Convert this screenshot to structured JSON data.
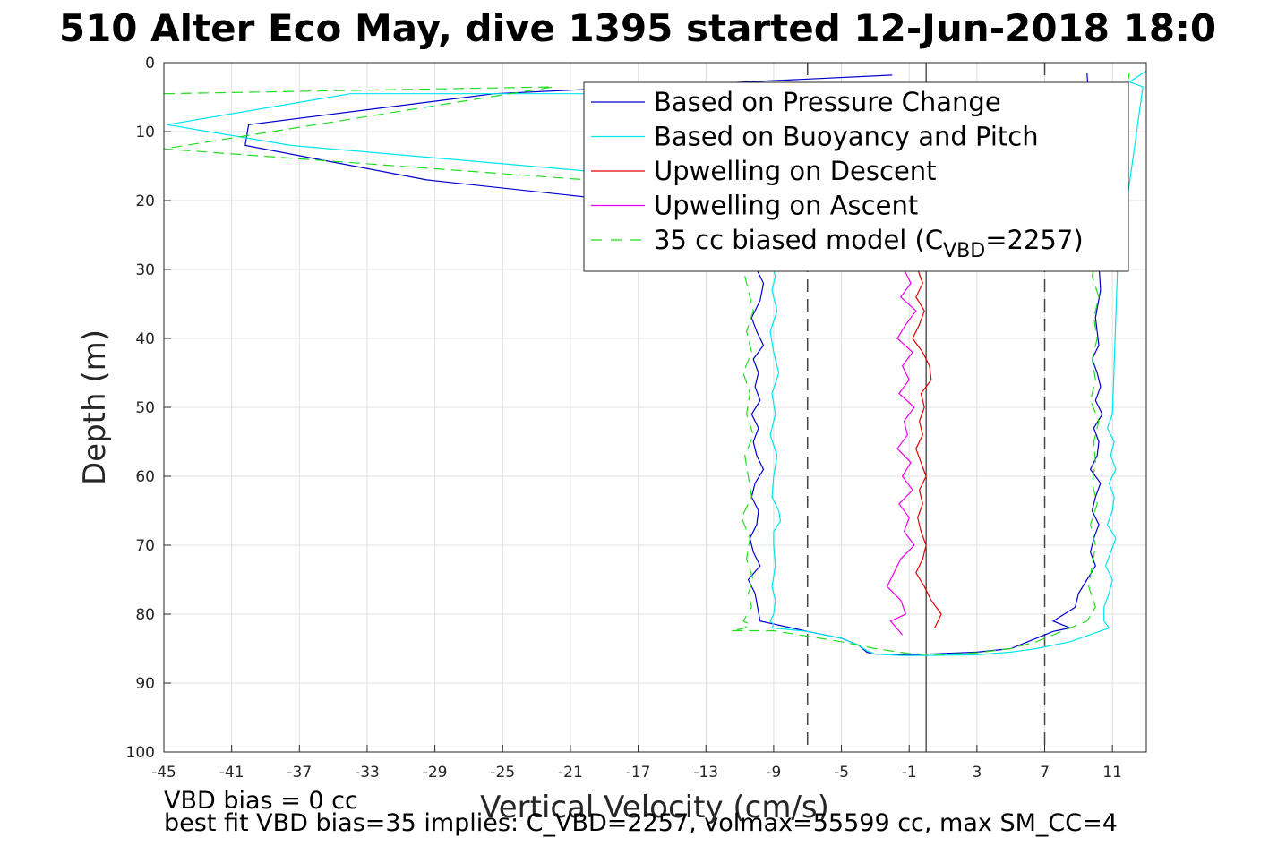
{
  "chart_data": {
    "type": "line",
    "title": "510 Alter Eco May, dive 1395 started 12-Jun-2018 18:0",
    "xlabel": "Vertical Velocity (cm/s)",
    "ylabel": "Depth (m)",
    "xlim": [
      -45,
      13
    ],
    "ylim": [
      0,
      100
    ],
    "y_reversed": true,
    "grid": true,
    "legend_position": "top-right",
    "xticks": [
      -45,
      -41,
      -37,
      -33,
      -29,
      -25,
      -21,
      -17,
      -13,
      -9,
      -5,
      -1,
      3,
      7,
      11
    ],
    "yticks": [
      0,
      10,
      20,
      30,
      40,
      50,
      60,
      70,
      80,
      90,
      100
    ],
    "reference_lines": {
      "solid_x": 0,
      "dashed_x": [
        -7,
        7
      ]
    },
    "legend": [
      {
        "label": "Based on Pressure Change",
        "color": "#0000cc",
        "style": "solid"
      },
      {
        "label": "Based on Buoyancy and Pitch",
        "color": "#00e5ee",
        "style": "solid"
      },
      {
        "label": "Upwelling on Descent",
        "color": "#e00000",
        "style": "solid"
      },
      {
        "label": "Upwelling on Ascent",
        "color": "#ee00ee",
        "style": "solid"
      },
      {
        "label": "35 cc biased model (C",
        "sub": "VBD",
        "suffix": "=2257)",
        "color": "#22dd22",
        "style": "dashed"
      }
    ],
    "series": [
      {
        "name": "Based on Pressure Change",
        "color": "#0000cc",
        "style": "solid",
        "x": [
          -2.0,
          -25.5,
          -40.0,
          -40.2,
          -29.5,
          -20.0,
          -10.7,
          -10.0,
          -9.6,
          -9.8,
          -10.3,
          -10.0,
          -9.6,
          -10.2,
          -9.9,
          -10.1,
          -9.8,
          -10.3,
          -9.9,
          -10.2,
          -10.0,
          -9.6,
          -10.1,
          -10.3,
          -9.9,
          -10.0,
          -10.4,
          -10.2,
          -9.8,
          -10.5,
          -10.1,
          -9.8,
          -7.0,
          -5.0,
          -4.0,
          -3.5,
          -3.0,
          -1.5,
          0.0,
          3.0,
          5.0,
          6.0,
          7.5,
          8.5,
          7.5,
          8.8,
          9.0,
          9.5,
          10.0,
          9.7,
          9.9,
          10.2,
          9.8,
          10.0,
          10.3,
          9.7,
          10.1,
          10.2,
          9.9,
          10.4,
          10.0,
          10.3,
          10.1,
          9.8,
          10.2,
          10.0,
          10.3,
          9.5
        ],
        "y": [
          1.8,
          4.5,
          9.0,
          12.0,
          17.0,
          19.5,
          24.0,
          30.0,
          32.0,
          34.5,
          37.0,
          39.0,
          41.0,
          43.0,
          45.0,
          47.0,
          49.0,
          51.0,
          53.0,
          55.0,
          57.0,
          59.0,
          61.0,
          63.0,
          65.0,
          67.0,
          69.0,
          71.0,
          73.0,
          75.0,
          77.0,
          81.0,
          82.5,
          83.5,
          84.5,
          85.5,
          85.8,
          85.9,
          85.8,
          85.5,
          85.0,
          84.0,
          82.5,
          82.0,
          81.0,
          79.0,
          77.0,
          75.0,
          73.0,
          71.0,
          69.0,
          67.0,
          65.0,
          63.0,
          61.0,
          59.0,
          57.0,
          55.0,
          53.0,
          51.0,
          49.0,
          47.0,
          45.0,
          43.0,
          41.0,
          37.0,
          33.0,
          1.5
        ]
      },
      {
        "name": "Based on Buoyancy and Pitch",
        "color": "#00e5ee",
        "style": "solid",
        "x": [
          -2.0,
          -34.0,
          -44.8,
          -37.5,
          -14.0,
          -9.6,
          -8.9,
          -9.1,
          -8.8,
          -9.2,
          -9.0,
          -8.7,
          -9.1,
          -8.9,
          -9.2,
          -8.8,
          -9.0,
          -9.1,
          -8.7,
          -8.6,
          -9.0,
          -9.0,
          -8.9,
          -9.1,
          -8.9,
          -9.0,
          -9.2,
          -9.0,
          -9.1,
          -7.0,
          -5.0,
          -4.0,
          -3.5,
          -3.0,
          -1.5,
          0.0,
          3.0,
          5.0,
          6.5,
          8.5,
          10.8,
          10.5,
          10.5,
          10.8,
          11.0,
          10.6,
          10.9,
          11.2,
          10.7,
          11.0,
          11.1,
          10.8,
          11.2,
          10.9,
          11.1,
          10.7,
          11.0,
          11.3,
          12.8,
          12.0,
          13.0
        ],
        "y": [
          4.5,
          4.5,
          9.0,
          12.0,
          17.0,
          24.0,
          31.0,
          33.0,
          36.0,
          39.0,
          42.0,
          45.0,
          48.0,
          51.0,
          54.0,
          57.0,
          60.0,
          63.0,
          65.0,
          66.5,
          68.0,
          70.0,
          73.0,
          76.0,
          78.0,
          80.0,
          81.0,
          81.5,
          82.0,
          82.5,
          83.5,
          84.5,
          85.3,
          85.8,
          86.0,
          86.0,
          85.9,
          85.5,
          85.0,
          84.0,
          82.0,
          81.0,
          79.0,
          77.0,
          75.0,
          73.0,
          71.0,
          69.0,
          67.0,
          65.0,
          63.0,
          61.0,
          59.0,
          57.0,
          55.0,
          53.0,
          51.0,
          30.0,
          3.5,
          2.8,
          1.2
        ]
      },
      {
        "name": "Upwelling on Descent",
        "color": "#e00000",
        "style": "solid",
        "x": [
          -0.5,
          -0.2,
          -0.6,
          -0.1,
          -0.4,
          -0.8,
          -0.2,
          0.2,
          0.3,
          -0.3,
          -0.1,
          -0.4,
          -0.2,
          -0.6,
          -0.3,
          0.0,
          -0.4,
          -0.2,
          -0.5,
          -0.3,
          0.0,
          -0.2,
          -0.6,
          -0.1,
          0.3,
          0.9,
          0.5
        ],
        "y": [
          30.0,
          32.0,
          34.0,
          36.0,
          38.0,
          40.0,
          42.0,
          44.0,
          46.0,
          48.0,
          50.0,
          52.0,
          54.0,
          56.0,
          58.0,
          60.0,
          62.0,
          64.0,
          66.0,
          68.0,
          70.0,
          72.0,
          74.0,
          76.0,
          78.0,
          80.0,
          82.0
        ]
      },
      {
        "name": "Upwelling on Ascent",
        "color": "#ee00ee",
        "style": "solid",
        "x": [
          -1.3,
          -0.9,
          -1.5,
          -0.6,
          -1.2,
          -1.7,
          -0.8,
          -1.4,
          -1.0,
          -1.6,
          -0.7,
          -1.3,
          -1.1,
          -1.7,
          -0.9,
          -1.4,
          -0.8,
          -1.6,
          -1.0,
          -1.3,
          -0.7,
          -1.5,
          -1.9,
          -2.3,
          -1.5,
          -1.2,
          -2.1,
          -1.4
        ],
        "y": [
          30.0,
          32.0,
          34.0,
          36.0,
          38.0,
          40.0,
          42.0,
          44.0,
          46.0,
          48.0,
          50.0,
          52.0,
          54.0,
          56.0,
          58.0,
          60.0,
          62.0,
          64.0,
          66.0,
          68.0,
          70.0,
          72.0,
          74.0,
          76.0,
          78.0,
          80.0,
          81.0,
          83.0
        ]
      },
      {
        "name": "35 cc biased model (CVBD=2257)",
        "color": "#22dd22",
        "style": "dashed",
        "x": [
          -45.0,
          -22.0,
          -45.0,
          -20.0,
          -10.8,
          -10.5,
          -10.2,
          -10.6,
          -10.3,
          -10.8,
          -10.4,
          -10.6,
          -10.2,
          -10.7,
          -10.5,
          -10.3,
          -10.9,
          -10.4,
          -10.6,
          -10.2,
          -10.5,
          -10.3,
          -10.8,
          -10.4,
          -10.7,
          -11.0,
          -11.5,
          -9.0,
          -5.0,
          -3.0,
          -1.0,
          0.5,
          3.0,
          5.0,
          6.5,
          8.0,
          9.5,
          10.0,
          9.6,
          9.8,
          10.0,
          9.7,
          10.1,
          9.8,
          10.0,
          9.9,
          10.2,
          9.7,
          10.0,
          9.8,
          10.1,
          9.9,
          10.2,
          9.8,
          12.0
        ],
        "y": [
          4.5,
          3.5,
          12.5,
          17.0,
          30.0,
          33.0,
          36.0,
          39.0,
          42.0,
          45.0,
          48.0,
          51.0,
          54.0,
          57.0,
          60.0,
          63.0,
          66.0,
          69.0,
          72.0,
          75.0,
          77.0,
          79.0,
          81.0,
          81.5,
          82.0,
          82.2,
          82.4,
          82.4,
          84.0,
          85.0,
          85.7,
          85.9,
          85.6,
          85.0,
          84.0,
          82.5,
          81.0,
          79.0,
          76.0,
          73.0,
          70.0,
          67.0,
          64.0,
          61.0,
          58.0,
          55.0,
          52.0,
          49.0,
          46.0,
          43.0,
          40.0,
          37.0,
          34.0,
          31.0,
          1.5
        ]
      }
    ],
    "notes": [
      "VBD bias = 0 cc",
      "best fit VBD bias=35 implies: C_VBD=2257, volmax=55599 cc, max SM_CC=4"
    ]
  }
}
